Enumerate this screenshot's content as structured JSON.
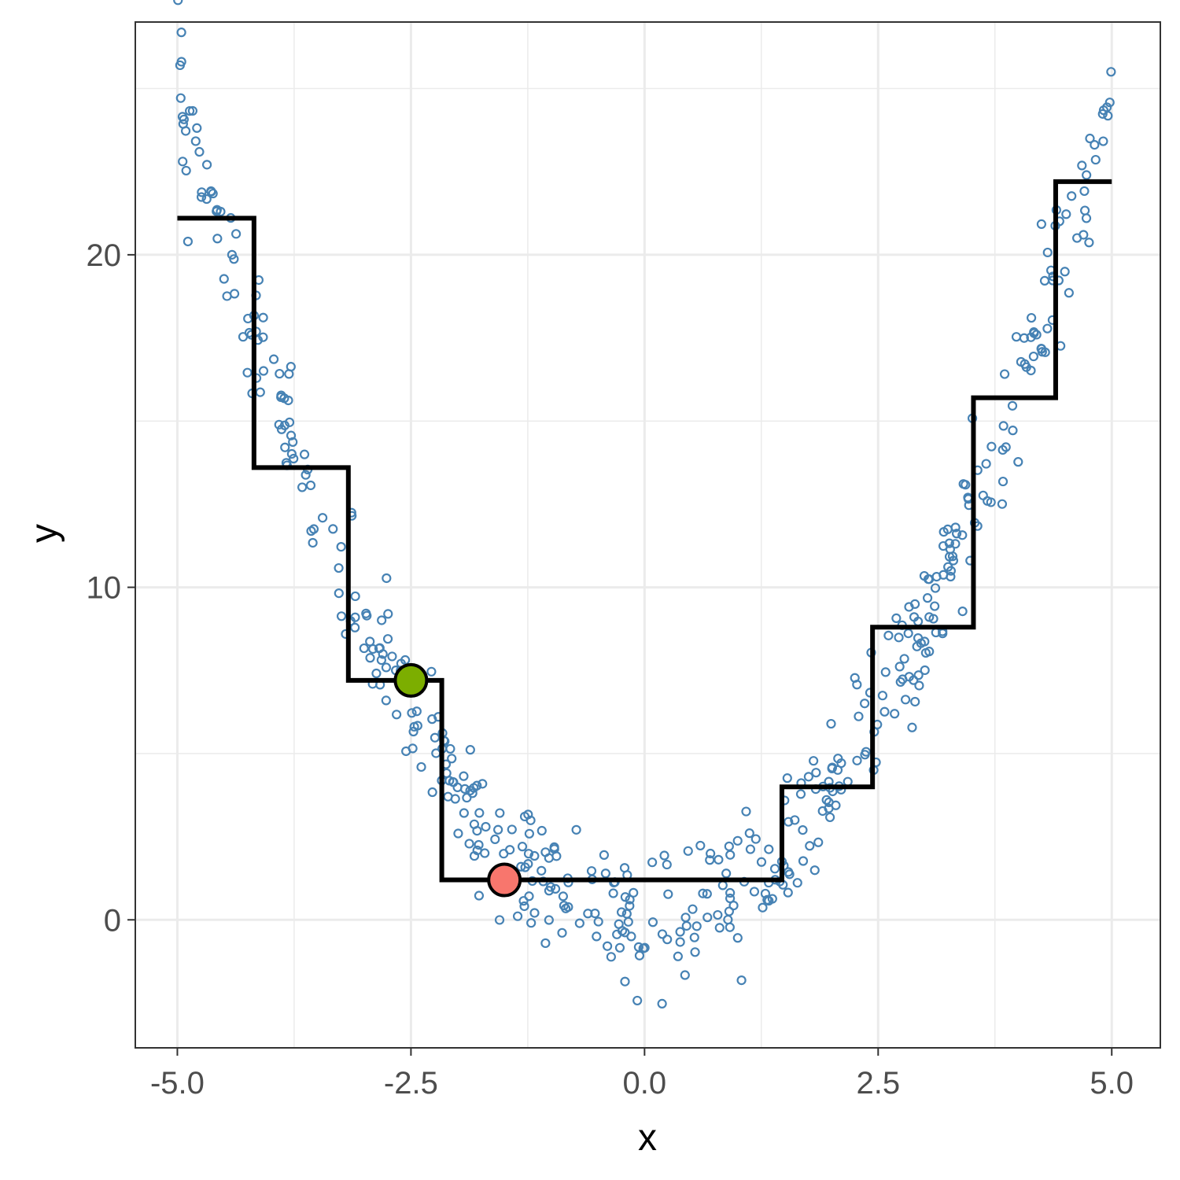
{
  "chart_data": {
    "type": "scatter",
    "title": "",
    "xlabel": "x",
    "ylabel": "y",
    "xlim": [
      -5.45,
      5.52
    ],
    "ylim": [
      -3.85,
      27.0
    ],
    "x_ticks": [
      -5.0,
      -2.5,
      0.0,
      2.5,
      5.0
    ],
    "x_tick_labels": [
      "-5.0",
      "-2.5",
      "0.0",
      "2.5",
      "5.0"
    ],
    "y_ticks": [
      0,
      10,
      20
    ],
    "y_tick_labels": [
      "0",
      "10",
      "20"
    ],
    "x_minor_gridlines": [
      -3.75,
      -1.25,
      1.25,
      3.75
    ],
    "y_minor_gridlines": [
      5,
      15,
      25
    ],
    "grid": true,
    "legend": "none",
    "colors": {
      "points": "#4682b4",
      "step_line": "#000000",
      "highlight_green": "#7cae00",
      "highlight_red": "#f8766d",
      "grid": "#ebebeb",
      "panel_border": "#333333"
    },
    "step_function": {
      "breaks": [
        -5.0,
        -4.18,
        -3.17,
        -2.17,
        1.47,
        2.44,
        3.52,
        4.4,
        5.0
      ],
      "values": [
        21.1,
        13.6,
        7.2,
        1.2,
        4.0,
        8.8,
        15.7,
        22.2
      ]
    },
    "highlight_points": [
      {
        "x": -2.5,
        "y": 7.2,
        "color": "#7cae00"
      },
      {
        "x": -1.5,
        "y": 1.2,
        "color": "#f8766d"
      }
    ],
    "scatter": {
      "description_of_generation": "",
      "n": 500,
      "x_range": [
        -5,
        5
      ],
      "y_function": "x^2",
      "noise_sd": 1.0
    }
  }
}
